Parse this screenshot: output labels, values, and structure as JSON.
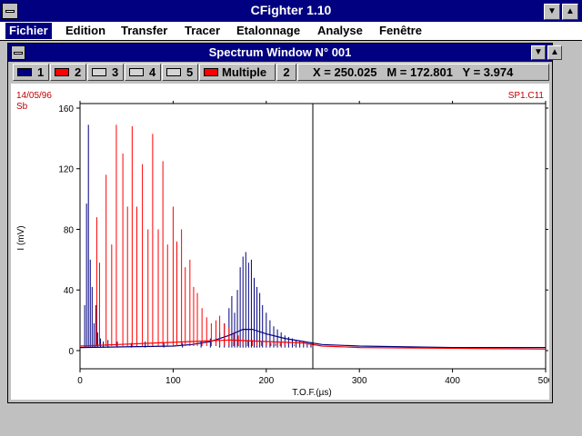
{
  "app": {
    "title": "CFighter 1.10"
  },
  "menu": [
    "Fichier",
    "Edition",
    "Transfer",
    "Tracer",
    "Etalonnage",
    "Analyse",
    "Fenêtre"
  ],
  "window": {
    "title": "Spectrum Window N° 001"
  },
  "toolbar": {
    "traces": [
      {
        "label": "1",
        "color": "#000080"
      },
      {
        "label": "2",
        "color": "#ff0000"
      },
      {
        "label": "3",
        "color": "#d4d4d4"
      },
      {
        "label": "4",
        "color": "#d4d4d4"
      },
      {
        "label": "5",
        "color": "#d4d4d4"
      }
    ],
    "multiple_label": "Multiple",
    "multiple_color": "#ff0000",
    "multiple_count": "2",
    "readout": "X = 250.025   M = 172.801   Y = 3.974"
  },
  "plot_meta": {
    "date": "14/05/96",
    "sample": "Sb",
    "file": "SP1.C11"
  },
  "chart_data": {
    "type": "line",
    "xlabel": "T.O.F.(µs)",
    "ylabel": "I (mV)",
    "xlim": [
      0,
      500
    ],
    "ylim": [
      -12,
      163
    ],
    "xticks": [
      0,
      100,
      200,
      300,
      400,
      500
    ],
    "yticks": [
      0,
      40,
      80,
      120,
      160
    ],
    "cursor_x": 250,
    "grid": false,
    "series": [
      {
        "color": "#000080",
        "baseline": 2,
        "peaks": [
          [
            5,
            30
          ],
          [
            7,
            97
          ],
          [
            9,
            149
          ],
          [
            11,
            60
          ],
          [
            13,
            42
          ],
          [
            15,
            18
          ],
          [
            17,
            30
          ],
          [
            19,
            12
          ],
          [
            22,
            8
          ],
          [
            25,
            6
          ],
          [
            30,
            7
          ],
          [
            40,
            6
          ],
          [
            55,
            5
          ],
          [
            70,
            6
          ],
          [
            90,
            5
          ],
          [
            110,
            5
          ],
          [
            130,
            6
          ],
          [
            140,
            8
          ],
          [
            150,
            12
          ],
          [
            155,
            18
          ],
          [
            160,
            28
          ],
          [
            163,
            36
          ],
          [
            166,
            25
          ],
          [
            169,
            40
          ],
          [
            172,
            55
          ],
          [
            175,
            62
          ],
          [
            178,
            65
          ],
          [
            181,
            58
          ],
          [
            184,
            60
          ],
          [
            187,
            48
          ],
          [
            190,
            42
          ],
          [
            193,
            38
          ],
          [
            196,
            30
          ],
          [
            200,
            25
          ],
          [
            204,
            20
          ],
          [
            208,
            16
          ],
          [
            212,
            14
          ],
          [
            216,
            12
          ],
          [
            220,
            10
          ],
          [
            224,
            9
          ],
          [
            228,
            8
          ],
          [
            232,
            7
          ],
          [
            236,
            6
          ],
          [
            240,
            6
          ],
          [
            244,
            5
          ],
          [
            248,
            5
          ]
        ],
        "envelope": [
          [
            0,
            2
          ],
          [
            100,
            3
          ],
          [
            120,
            4
          ],
          [
            140,
            6
          ],
          [
            160,
            10
          ],
          [
            175,
            14
          ],
          [
            185,
            14
          ],
          [
            200,
            11
          ],
          [
            220,
            8
          ],
          [
            240,
            6
          ],
          [
            260,
            4
          ],
          [
            300,
            3
          ],
          [
            400,
            2
          ],
          [
            500,
            2
          ]
        ]
      },
      {
        "color": "#ff0000",
        "baseline": 3,
        "peaks": [
          [
            18,
            88
          ],
          [
            21,
            58
          ],
          [
            28,
            116
          ],
          [
            34,
            70
          ],
          [
            39,
            149
          ],
          [
            46,
            130
          ],
          [
            51,
            95
          ],
          [
            56,
            148
          ],
          [
            61,
            95
          ],
          [
            67,
            123
          ],
          [
            73,
            80
          ],
          [
            78,
            143
          ],
          [
            84,
            80
          ],
          [
            89,
            125
          ],
          [
            94,
            70
          ],
          [
            100,
            95
          ],
          [
            104,
            72
          ],
          [
            109,
            80
          ],
          [
            113,
            55
          ],
          [
            118,
            60
          ],
          [
            122,
            42
          ],
          [
            126,
            38
          ],
          [
            131,
            28
          ],
          [
            136,
            22
          ],
          [
            141,
            18
          ],
          [
            146,
            20
          ],
          [
            150,
            23
          ],
          [
            155,
            18
          ],
          [
            160,
            15
          ],
          [
            165,
            12
          ],
          [
            170,
            10
          ],
          [
            175,
            9
          ],
          [
            180,
            7
          ],
          [
            185,
            7
          ],
          [
            190,
            6
          ],
          [
            195,
            6
          ],
          [
            200,
            6
          ],
          [
            205,
            5
          ],
          [
            210,
            5
          ],
          [
            215,
            5
          ],
          [
            220,
            5
          ],
          [
            230,
            4
          ],
          [
            240,
            4
          ]
        ],
        "envelope": [
          [
            0,
            3
          ],
          [
            40,
            4
          ],
          [
            80,
            5
          ],
          [
            120,
            6
          ],
          [
            160,
            7
          ],
          [
            200,
            6
          ],
          [
            240,
            5
          ],
          [
            260,
            3
          ],
          [
            300,
            2
          ],
          [
            500,
            1
          ]
        ]
      }
    ]
  }
}
